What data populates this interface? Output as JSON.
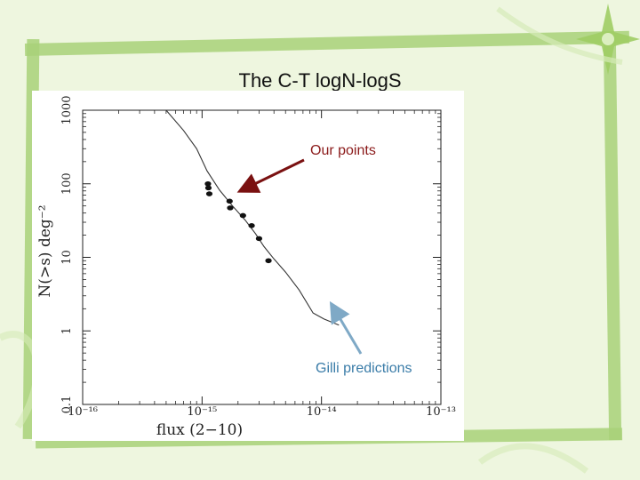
{
  "slide": {
    "title": "The C-T logN-logS"
  },
  "colors": {
    "background": "#eef6df",
    "frame": "#a8d179",
    "our_points_arrow": "#7a1111",
    "gilli_arrow": "#7fa9c6"
  },
  "annotations": {
    "our_points": "Our points",
    "gilli": "Gilli predictions"
  },
  "chart_data": {
    "type": "scatter",
    "title": "",
    "xlabel": "flux (2−10)",
    "ylabel": "N(>s) deg⁻²",
    "xscale": "log",
    "yscale": "log",
    "xlim": [
      1e-16,
      1e-13
    ],
    "ylim": [
      0.1,
      1000
    ],
    "x_ticks": [
      {
        "value": 1e-16,
        "label": "10⁻¹⁶"
      },
      {
        "value": 1e-15,
        "label": "10⁻¹⁵"
      },
      {
        "value": 1e-14,
        "label": "10⁻¹⁴"
      },
      {
        "value": 1e-13,
        "label": "10⁻¹³"
      }
    ],
    "y_ticks": [
      {
        "value": 0.1,
        "label": "0.1"
      },
      {
        "value": 1,
        "label": "1"
      },
      {
        "value": 10,
        "label": "10"
      },
      {
        "value": 100,
        "label": "100"
      },
      {
        "value": 1000,
        "label": "1000"
      }
    ],
    "grid": false,
    "series": [
      {
        "style": "line",
        "x": [
          5e-16,
          7e-16,
          9e-16,
          1.1e-15,
          1.4e-15,
          1.8e-15,
          2.3e-15,
          2.8e-15,
          3.3e-15,
          4e-15,
          5e-15,
          6.5e-15,
          8.5e-15,
          1.05e-14,
          1.4e-14
        ],
        "y": [
          1000,
          530,
          300,
          150,
          82,
          50,
          32,
          21,
          14,
          9.5,
          6.3,
          3.6,
          1.75,
          1.45,
          1.2
        ]
      },
      {
        "style": "points",
        "x": [
          1.12e-15,
          1.13e-15,
          1.15e-15,
          1.7e-15,
          1.72e-15,
          2.2e-15,
          2.6e-15,
          3e-15,
          3.6e-15
        ],
        "y": [
          100,
          88,
          73,
          58,
          47,
          37,
          27,
          18,
          9.0
        ]
      }
    ]
  }
}
